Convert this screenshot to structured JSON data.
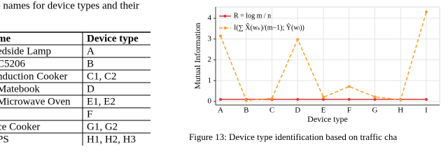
{
  "table_caption": "e names for device types and their",
  "table": {
    "header": [
      "me",
      "Device type"
    ],
    "rows": [
      [
        "edside Lamp",
        "A"
      ],
      [
        "C5206",
        "B"
      ],
      [
        "nduction Cooker",
        "C1, C2"
      ],
      [
        "Matebook",
        "D"
      ],
      [
        "Microwave Oven",
        "E1, E2"
      ],
      [
        null,
        "F"
      ],
      [
        "ce Cooker",
        "G1, G2"
      ],
      [
        "PS",
        "H1, H2, H3"
      ]
    ]
  },
  "chart_data": {
    "type": "line",
    "x_label": "Device type",
    "y_label": "Mutual Information",
    "categories": [
      "A",
      "B",
      "C",
      "D",
      "E",
      "F",
      "G",
      "H",
      "I"
    ],
    "series": [
      {
        "name": "R = log m / n",
        "color": "#e3343c",
        "dashed": false,
        "values": [
          0.1,
          0.1,
          0.1,
          0.1,
          0.1,
          0.1,
          0.1,
          0.1,
          0.1
        ]
      },
      {
        "name": "I(∑ X̂(wₖ)/(m−1); Ŷ(wₗ))",
        "color": "#f5a12a",
        "dashed": true,
        "values": [
          3.15,
          0.05,
          0.15,
          2.98,
          0.2,
          0.72,
          0.22,
          0.08,
          4.3
        ]
      }
    ],
    "ylim": [
      -0.17,
      4.54
    ],
    "yticks": [
      0,
      1,
      2,
      3,
      4
    ],
    "grid": true,
    "legend": "upper left"
  },
  "figure_caption": "Figure 13: Device type identification based on traffic cha"
}
